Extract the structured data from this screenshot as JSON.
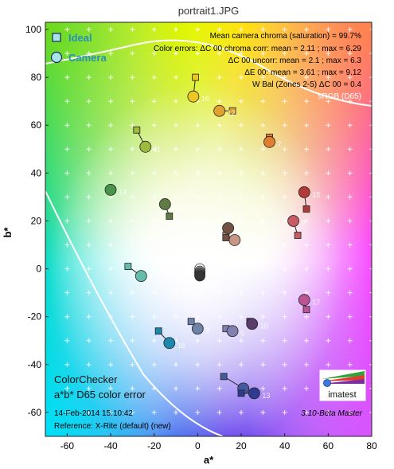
{
  "window": {
    "title": "portrait1.JPG"
  },
  "chart_data": {
    "type": "scatter",
    "title": "portrait1.JPG",
    "xlabel": "a*",
    "ylabel": "b*",
    "xlim": [
      -70,
      80
    ],
    "ylim": [
      -70,
      103
    ],
    "xticks": [
      -60,
      -40,
      -20,
      0,
      20,
      40,
      60,
      80
    ],
    "yticks": [
      -60,
      -40,
      -20,
      0,
      20,
      40,
      60,
      80,
      100
    ],
    "grid": "dotted crosses",
    "legend": {
      "placement": "top-left",
      "entries": [
        "Ideal",
        "Camera"
      ]
    },
    "stats": [
      "Mean camera chroma (saturation) = 99.7%",
      "Color errors: ΔC 00 chroma corr:  mean = 2.11 ;  max = 6.29",
      "ΔC 00 uncorr:  mean = 2.1 ;  max = 6.3",
      "ΔE 00:  mean = 3.61 ;  max = 9.12",
      "W Bal (Zones 2-5) ΔC 00 = 0.4"
    ],
    "gamut_label": "sRGB (D65)",
    "info_title": "ColorChecker",
    "info_subtitle": "a*b* D65 color error",
    "date": "14-Feb-2014 15:10:42",
    "reference": "Reference: X-Rite (default) (new)",
    "version": "3.10-Beta  Master",
    "logo_text": "imatest",
    "patches": [
      {
        "id": "2",
        "ideal": [
          13,
          14
        ],
        "camera": [
          17,
          12
        ],
        "color": "#c79685"
      },
      {
        "id": "3",
        "ideal": [
          -3,
          -22
        ],
        "camera": [
          0,
          -25
        ],
        "color": "#6d84a8"
      },
      {
        "id": "4",
        "ideal": [
          -13,
          22
        ],
        "camera": [
          -15,
          27
        ],
        "color": "#5f7a43"
      },
      {
        "id": "5",
        "ideal": [
          13,
          -25
        ],
        "camera": [
          16,
          -26
        ],
        "color": "#8180b1"
      },
      {
        "id": "6",
        "ideal": [
          -32,
          1
        ],
        "camera": [
          -26,
          -3
        ],
        "color": "#66bcaa"
      },
      {
        "id": "7",
        "ideal": [
          33,
          55
        ],
        "camera": [
          33,
          53
        ],
        "color": "#e07f2f"
      },
      {
        "id": "8",
        "ideal": [
          12,
          -45
        ],
        "camera": [
          21,
          -50
        ],
        "color": "#445a9f"
      },
      {
        "id": "9",
        "ideal": [
          46,
          14
        ],
        "camera": [
          44,
          20
        ],
        "color": "#c75a63"
      },
      {
        "id": "10",
        "ideal": [
          24,
          -22
        ],
        "camera": [
          25,
          -23
        ],
        "color": "#5b3c6b"
      },
      {
        "id": "11",
        "ideal": [
          -28,
          58
        ],
        "camera": [
          -24,
          51
        ],
        "color": "#9fba3f"
      },
      {
        "id": "12",
        "ideal": [
          16,
          66
        ],
        "camera": [
          10,
          66
        ],
        "color": "#e2a12f"
      },
      {
        "id": "13",
        "ideal": [
          20,
          -52
        ],
        "camera": [
          26,
          -52
        ],
        "color": "#2e3b8f"
      },
      {
        "id": "14",
        "ideal": [
          -40,
          33
        ],
        "camera": [
          -40,
          33
        ],
        "color": "#47944a"
      },
      {
        "id": "15",
        "ideal": [
          50,
          25
        ],
        "camera": [
          49,
          32
        ],
        "color": "#b13a39"
      },
      {
        "id": "16",
        "ideal": [
          -1,
          80
        ],
        "camera": [
          -2,
          72
        ],
        "color": "#ecc722"
      },
      {
        "id": "17",
        "ideal": [
          50,
          -17
        ],
        "camera": [
          49,
          -13
        ],
        "color": "#bb5495"
      },
      {
        "id": "18",
        "ideal": [
          -18,
          -26
        ],
        "camera": [
          -13,
          -31
        ],
        "color": "#1c88ab"
      },
      {
        "id": "1",
        "ideal": [
          13,
          13
        ],
        "camera": [
          14,
          17
        ],
        "color": "#735244"
      }
    ],
    "neutrals": [
      {
        "camera": [
          1,
          0
        ],
        "color": "#f3f3f2"
      },
      {
        "camera": [
          1,
          -1
        ],
        "color": "#c8c8c8"
      },
      {
        "camera": [
          1,
          -1.5
        ],
        "color": "#a0a0a0"
      },
      {
        "camera": [
          1,
          -2
        ],
        "color": "#7a7a79"
      },
      {
        "camera": [
          1,
          -2.5
        ],
        "color": "#555555"
      },
      {
        "camera": [
          1,
          -3
        ],
        "color": "#343434"
      }
    ]
  }
}
